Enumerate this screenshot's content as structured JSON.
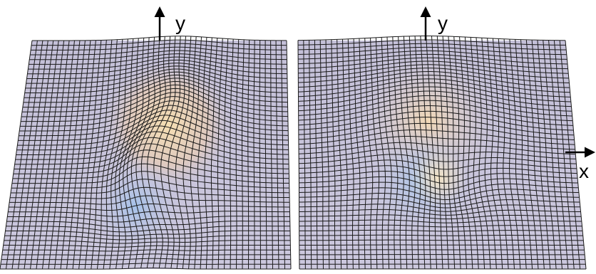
{
  "colors": {
    "background": "#ffffff",
    "mesh_line": "#1a1a1a",
    "surface_base": "#c9c5dc",
    "surface_warm": "#f4dcb0",
    "surface_cool": "#a9c4e6",
    "axis": "#000000"
  },
  "icons": [
    "arrow-up-icon",
    "arrow-right-icon"
  ],
  "panels": [
    {
      "name": "left-surface",
      "axis_labels": {
        "y": "y"
      },
      "arrows": [
        "y"
      ]
    },
    {
      "name": "right-surface",
      "axis_labels": {
        "y": "y",
        "x": "x"
      },
      "arrows": [
        "y",
        "x"
      ]
    }
  ]
}
